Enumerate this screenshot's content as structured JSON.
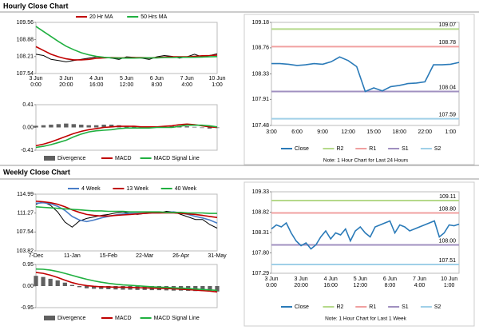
{
  "sections": [
    "Hourly Close Chart",
    "Weekly Close Chart"
  ],
  "chart_data": [
    {
      "type": "line",
      "categories": [
        "3 Jun\n0:00",
        null,
        null,
        null,
        "3 Jun\n20:00",
        null,
        null,
        null,
        "4 Jun\n16:00",
        null,
        null,
        null,
        "5 Jun\n12:00",
        null,
        null,
        null,
        "6 Jun\n8:00",
        null,
        null,
        null,
        "7 Jun\n4:00",
        null,
        null,
        null,
        "10 Jun\n1:00"
      ],
      "ylim": [
        107.54,
        109.56
      ],
      "yticks": [
        109.56,
        108.88,
        108.21,
        107.54
      ],
      "series": [
        {
          "color": "#000000",
          "values": [
            108.3,
            108.25,
            108.1,
            108.05,
            108.0,
            108.05,
            108.1,
            108.15,
            108.2,
            108.18,
            108.15,
            108.1,
            108.2,
            108.18,
            108.15,
            108.1,
            108.2,
            108.25,
            108.22,
            108.15,
            108.2,
            108.3,
            108.2,
            108.25,
            108.32
          ]
        },
        {
          "name": "20 Hr MA",
          "color": "#c00000",
          "values": [
            108.6,
            108.45,
            108.3,
            108.2,
            108.12,
            108.08,
            108.08,
            108.1,
            108.14,
            108.16,
            108.17,
            108.16,
            108.16,
            108.17,
            108.17,
            108.16,
            108.17,
            108.19,
            108.2,
            108.2,
            108.2,
            108.22,
            108.24,
            108.25,
            108.27
          ]
        },
        {
          "name": "50 Hrs MA",
          "color": "#20b040",
          "values": [
            109.4,
            109.2,
            109.0,
            108.8,
            108.62,
            108.48,
            108.36,
            108.28,
            108.22,
            108.18,
            108.16,
            108.15,
            108.15,
            108.15,
            108.16,
            108.16,
            108.16,
            108.17,
            108.17,
            108.18,
            108.18,
            108.18,
            108.19,
            108.2,
            108.21
          ]
        }
      ]
    },
    {
      "type": "line",
      "ylim": [
        -0.41,
        0.41
      ],
      "yticks": [
        0.41,
        {
          "value": 0,
          "label": "0.00"
        },
        -0.41
      ],
      "series": [
        {
          "name": "Divergence",
          "style": "bar",
          "color": "#606060",
          "values": [
            0.03,
            0.04,
            0.05,
            0.06,
            0.07,
            0.06,
            0.05,
            0.04,
            0.04,
            0.05,
            0.05,
            0.04,
            0.03,
            0.03,
            0.02,
            0.02,
            0.01,
            0.02,
            0.03,
            0.03,
            0.02,
            0.01,
            -0.01,
            -0.02,
            -0.01
          ]
        },
        {
          "name": "MACD",
          "color": "#c00000",
          "values": [
            -0.33,
            -0.3,
            -0.26,
            -0.21,
            -0.16,
            -0.11,
            -0.07,
            -0.04,
            -0.02,
            0.0,
            0.01,
            0.02,
            0.02,
            0.02,
            0.01,
            0.01,
            0.01,
            0.02,
            0.03,
            0.05,
            0.06,
            0.05,
            0.03,
            0.01,
            0.0
          ]
        },
        {
          "name": "MACD Signal Line",
          "color": "#20b040",
          "values": [
            -0.36,
            -0.34,
            -0.31,
            -0.27,
            -0.23,
            -0.17,
            -0.12,
            -0.08,
            -0.06,
            -0.05,
            -0.04,
            -0.02,
            -0.01,
            -0.01,
            -0.01,
            -0.01,
            0.0,
            0.0,
            0.0,
            0.02,
            0.04,
            0.04,
            0.04,
            0.03,
            0.01
          ]
        }
      ]
    },
    {
      "type": "line",
      "categories": [
        "3:00",
        null,
        null,
        "6:00",
        null,
        null,
        "9:00",
        null,
        null,
        "12:00",
        null,
        null,
        "15:00",
        null,
        null,
        "18:00",
        null,
        null,
        "22:00",
        null,
        null,
        "1:00",
        null
      ],
      "ylim": [
        107.48,
        109.18
      ],
      "yticks": [
        109.18,
        108.76,
        108.33,
        107.91,
        107.48
      ],
      "series": [
        {
          "name": "Close",
          "color": "#2a7ab8",
          "values": [
            108.5,
            108.5,
            108.49,
            108.47,
            108.48,
            108.5,
            108.49,
            108.53,
            108.61,
            108.55,
            108.45,
            108.04,
            108.1,
            108.05,
            108.12,
            108.14,
            108.17,
            108.18,
            108.2,
            108.48,
            108.48,
            108.49,
            108.52
          ]
        }
      ],
      "levels": [
        {
          "name": "R2",
          "color": "#b5d98a",
          "value": 109.07
        },
        {
          "name": "R1",
          "color": "#f0a0a0",
          "value": 108.78
        },
        {
          "name": "S1",
          "color": "#a090c0",
          "value": 108.04
        },
        {
          "name": "S2",
          "color": "#a0d0e8",
          "value": 107.59
        }
      ],
      "note": "Note: 1 Hour Chart for Last 24 Hours"
    },
    {
      "type": "line",
      "categories": [
        "7-Dec",
        null,
        null,
        null,
        null,
        "11-Jan",
        null,
        null,
        null,
        null,
        "15-Feb",
        null,
        null,
        null,
        null,
        "22-Mar",
        null,
        null,
        null,
        null,
        "26-Apr",
        null,
        null,
        null,
        null,
        "31-May"
      ],
      "ylim": [
        103.82,
        114.99
      ],
      "yticks": [
        114.99,
        111.27,
        107.54,
        103.82
      ],
      "series": [
        {
          "color": "#000000",
          "values": [
            113.0,
            113.5,
            112.8,
            111.5,
            109.5,
            108.5,
            109.7,
            110.2,
            110.5,
            110.8,
            111.0,
            111.3,
            111.5,
            111.2,
            111.0,
            111.2,
            111.5,
            111.3,
            111.6,
            111.5,
            111.0,
            110.5,
            110.0,
            110.0,
            109.0,
            108.3
          ]
        },
        {
          "name": "4 Week",
          "color": "#4a7ec8",
          "values": [
            113.2,
            113.3,
            113.1,
            112.6,
            111.8,
            110.6,
            109.9,
            109.6,
            109.9,
            110.3,
            110.6,
            110.9,
            111.1,
            111.2,
            111.2,
            111.2,
            111.3,
            111.3,
            111.4,
            111.5,
            111.3,
            111.0,
            110.6,
            110.3,
            109.9,
            109.3
          ]
        },
        {
          "name": "13 Week",
          "color": "#c00000",
          "values": [
            113.6,
            113.5,
            113.3,
            113.0,
            112.5,
            111.9,
            111.4,
            111.0,
            110.8,
            110.7,
            110.7,
            110.8,
            110.9,
            111.0,
            111.1,
            111.2,
            111.3,
            111.3,
            111.3,
            111.3,
            111.2,
            111.1,
            111.0,
            110.8,
            110.6,
            110.4
          ]
        },
        {
          "name": "40 Week",
          "color": "#20b040",
          "values": [
            112.5,
            112.4,
            112.3,
            112.2,
            112.1,
            112.0,
            111.9,
            111.8,
            111.7,
            111.7,
            111.6,
            111.6,
            111.6,
            111.5,
            111.5,
            111.5,
            111.5,
            111.5,
            111.4,
            111.4,
            111.4,
            111.3,
            111.3,
            111.3,
            111.2,
            111.2
          ]
        }
      ]
    },
    {
      "type": "line",
      "ylim": [
        -0.95,
        0.95
      ],
      "yticks": [
        0.95,
        {
          "value": 0,
          "label": "0.00"
        },
        -0.95
      ],
      "series": [
        {
          "name": "Divergence",
          "style": "bar",
          "color": "#606060",
          "values": [
            0.45,
            0.4,
            0.32,
            0.25,
            0.15,
            0.05,
            -0.05,
            -0.1,
            -0.12,
            -0.13,
            -0.14,
            -0.15,
            -0.16,
            -0.16,
            -0.17,
            -0.17,
            -0.18,
            -0.18,
            -0.19,
            -0.2,
            -0.2,
            -0.21,
            -0.22,
            -0.22,
            -0.23,
            -0.24
          ]
        },
        {
          "name": "MACD",
          "color": "#c00000",
          "values": [
            0.6,
            0.56,
            0.48,
            0.38,
            0.26,
            0.15,
            0.07,
            0.02,
            -0.01,
            -0.03,
            -0.04,
            -0.05,
            -0.05,
            -0.06,
            -0.07,
            -0.08,
            -0.09,
            -0.1,
            -0.11,
            -0.12,
            -0.14,
            -0.16,
            -0.18,
            -0.2,
            -0.22,
            -0.26
          ]
        },
        {
          "name": "MACD Signal Line",
          "color": "#20b040",
          "values": [
            0.75,
            0.74,
            0.7,
            0.64,
            0.56,
            0.47,
            0.38,
            0.3,
            0.23,
            0.17,
            0.12,
            0.08,
            0.05,
            0.03,
            0.01,
            -0.01,
            -0.03,
            -0.05,
            -0.06,
            -0.08,
            -0.09,
            -0.11,
            -0.13,
            -0.15,
            -0.17,
            -0.19
          ]
        }
      ]
    },
    {
      "type": "line",
      "categories": [
        "3 Jun\n0:00",
        null,
        null,
        null,
        null,
        null,
        "3 Jun\n20:00",
        null,
        null,
        null,
        null,
        null,
        "4 Jun\n16:00",
        null,
        null,
        null,
        null,
        null,
        "5 Jun\n12:00",
        null,
        null,
        null,
        null,
        null,
        "6 Jun\n8:00",
        null,
        null,
        null,
        null,
        null,
        "7 Jun\n4:00",
        null,
        null,
        null,
        null,
        null,
        "10 Jun\n1:00",
        null,
        null
      ],
      "ylim": [
        107.29,
        109.33
      ],
      "yticks": [
        109.33,
        108.82,
        108.31,
        {
          "value": 107.8,
          "label": "107.80"
        },
        107.29
      ],
      "series": [
        {
          "name": "Close",
          "color": "#2a7ab8",
          "values": [
            108.4,
            108.5,
            108.45,
            108.55,
            108.3,
            108.1,
            107.98,
            108.05,
            107.9,
            108.0,
            108.2,
            108.35,
            108.15,
            108.3,
            108.25,
            108.4,
            108.1,
            108.35,
            108.45,
            108.3,
            108.2,
            108.45,
            108.5,
            108.55,
            108.6,
            108.3,
            108.5,
            108.45,
            108.35,
            108.4,
            108.45,
            108.5,
            108.55,
            108.6,
            108.2,
            108.3,
            108.5,
            108.48,
            108.52
          ]
        }
      ],
      "levels": [
        {
          "name": "R2",
          "color": "#b5d98a",
          "value": 109.11
        },
        {
          "name": "R1",
          "color": "#f0a0a0",
          "value": 108.8,
          "value_label": "108.80"
        },
        {
          "name": "S1",
          "color": "#a090c0",
          "value": 108.0,
          "value_label": "108.00"
        },
        {
          "name": "S2",
          "color": "#a0d0e8",
          "value": 107.51
        }
      ],
      "note": "Note: 1 Hour Chart for Last 1 Week"
    }
  ]
}
